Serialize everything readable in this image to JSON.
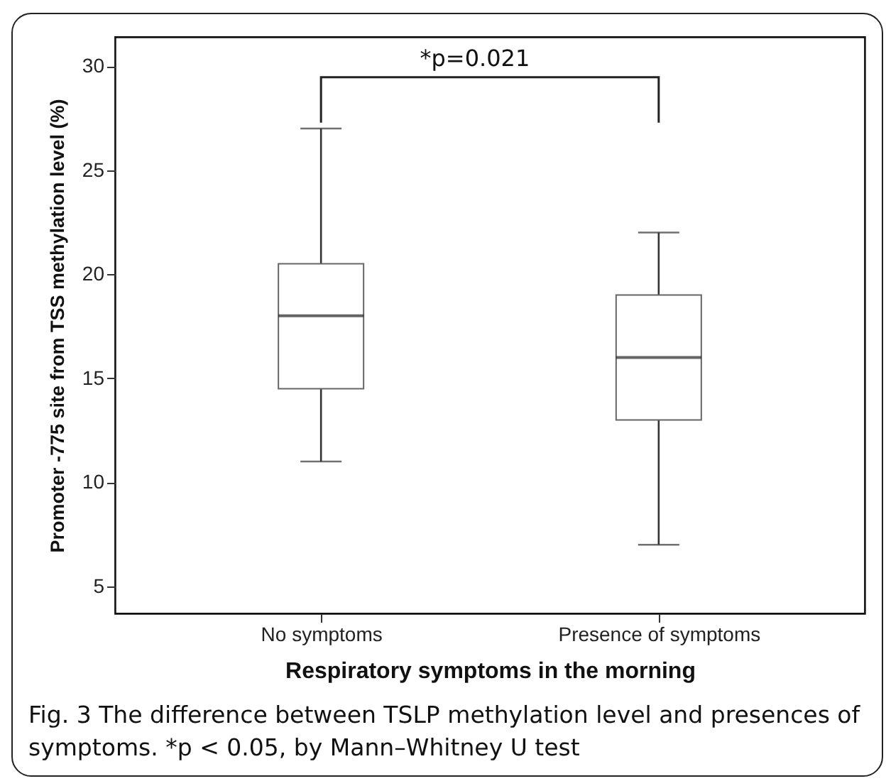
{
  "chart_data": {
    "type": "box",
    "categories": [
      "No symptoms",
      "Presence of symptoms"
    ],
    "boxes": [
      {
        "low": 11,
        "q1": 14.5,
        "median": 18,
        "q3": 20.5,
        "high": 27
      },
      {
        "low": 7,
        "q1": 13,
        "median": 16,
        "q3": 19,
        "high": 22
      }
    ],
    "xlabel": "Respiratory symptoms in the morning",
    "ylabel": "Promoter -775 site from TSS methylation level (%)",
    "ylim": [
      3.7,
      31.4
    ],
    "yticks": [
      5,
      10,
      15,
      20,
      25,
      30
    ],
    "annotations": [
      "*p=0.021",
      "Fig. 3 The difference between TSLP methylation level and presences of symptoms. *p < 0.05, by Mann–Whitney U test"
    ]
  }
}
